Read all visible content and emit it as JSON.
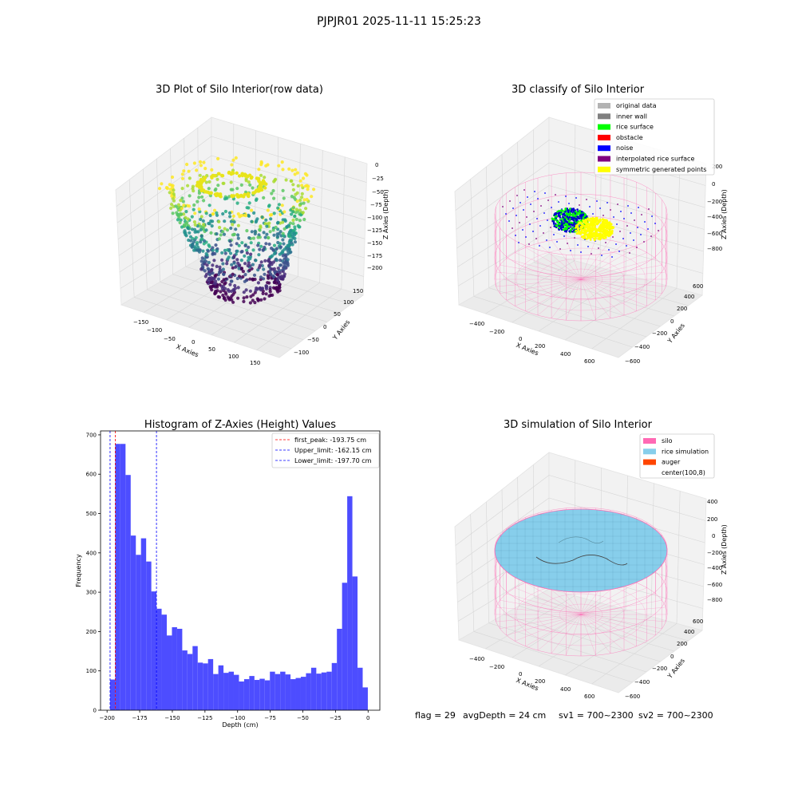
{
  "figure": {
    "suptitle": "PJPJR01 2025-11-11 15:25:23",
    "footer": {
      "flag": "flag = 29",
      "avg_depth": "avgDepth = 24 cm",
      "sv1": "sv1 = 700~2300",
      "sv2": "sv2 = 700~2300"
    }
  },
  "chart_data": [
    {
      "type": "scatter",
      "projection": "3d",
      "title": "3D Plot of Silo Interior(row data)",
      "xlabel": "X Axies",
      "ylabel": "Y Axies",
      "zlabel": "Z Axies (Depth)",
      "x_ticks": [
        "−150",
        "−100",
        "−50",
        "0",
        "50",
        "100",
        "150"
      ],
      "y_ticks": [
        "−100",
        "−50",
        "0",
        "50",
        "100",
        "150"
      ],
      "z_ticks": [
        "0",
        "−25",
        "−50",
        "−75",
        "−100",
        "−125",
        "−150",
        "−175",
        "−200"
      ],
      "xlim": [
        -170,
        170
      ],
      "ylim": [
        -130,
        170
      ],
      "zlim": [
        -205,
        5
      ],
      "colormap": "viridis",
      "point_cloud": "bowl-shaped cloud of points, depth about -200 at the bottom rising to about -20 at the top edge"
    },
    {
      "type": "scatter",
      "projection": "3d",
      "title": "3D classify of Silo Interior",
      "xlabel": "X Axies",
      "ylabel": "Y Axies",
      "zlabel": "Z Axies (Depth)",
      "x_ticks": [
        "−400",
        "−200",
        "0",
        "200",
        "400",
        "600"
      ],
      "y_ticks": [
        "−600",
        "−400",
        "−200",
        "0",
        "200",
        "400",
        "600"
      ],
      "z_ticks": [
        "200",
        "0",
        "−200",
        "−400",
        "−600",
        "−800"
      ],
      "legend": [
        {
          "label": "original data",
          "color": "#b3b3b3"
        },
        {
          "label": "inner wall",
          "color": "#808080"
        },
        {
          "label": "rice surface",
          "color": "#00ff00"
        },
        {
          "label": "obstacle",
          "color": "#ff0000"
        },
        {
          "label": "noise",
          "color": "#0000ff"
        },
        {
          "label": "interpolated rice surface",
          "color": "#800080"
        },
        {
          "label": "symmetric generated points",
          "color": "#ffff00"
        }
      ],
      "legend_position": "upper right",
      "wireframe_color": "#ff69b4"
    },
    {
      "type": "bar",
      "title": "Histogram of Z-Axies (Height) Values",
      "xlabel": "Depth (cm)",
      "ylabel": "Frequency",
      "xlim": [
        -205,
        9
      ],
      "ylim": [
        0,
        710
      ],
      "x_ticks": [
        -200,
        -175,
        -150,
        -125,
        -100,
        -75,
        -50,
        -25,
        0
      ],
      "x_tick_labels": [
        "−200",
        "−175",
        "−150",
        "−125",
        "−100",
        "−75",
        "−50",
        "−25",
        "0"
      ],
      "y_ticks": [
        0,
        100,
        200,
        300,
        400,
        500,
        600,
        700
      ],
      "bar_color": "#4d4dff",
      "bin_start": -197.7,
      "bin_width": 3.95,
      "values": [
        78,
        677,
        677,
        598,
        444,
        395,
        437,
        378,
        302,
        258,
        243,
        190,
        211,
        207,
        152,
        143,
        163,
        121,
        119,
        130,
        92,
        114,
        95,
        98,
        90,
        73,
        79,
        87,
        77,
        80,
        76,
        98,
        92,
        98,
        91,
        79,
        82,
        85,
        94,
        108,
        93,
        96,
        98,
        120,
        207,
        324,
        544,
        340,
        108,
        58
      ],
      "lines": [
        {
          "label": "first_peak: -193.75 cm",
          "x": -193.75,
          "color": "#ff0000"
        },
        {
          "label": "Upper_limit: -162.15 cm",
          "x": -162.15,
          "color": "#0000ff"
        },
        {
          "label": "Lower_limit: -197.70 cm",
          "x": -197.7,
          "color": "#0000ff"
        }
      ],
      "legend_position": "upper right"
    },
    {
      "type": "surface",
      "projection": "3d",
      "title": "3D simulation of Silo Interior",
      "xlabel": "X Axies",
      "ylabel": "Y Axies",
      "zlabel": "Z Axies (Depth)",
      "x_ticks": [
        "−400",
        "−200",
        "0",
        "200",
        "400",
        "600"
      ],
      "y_ticks": [
        "−600",
        "−400",
        "−200",
        "0",
        "200",
        "400",
        "600"
      ],
      "z_ticks": [
        "400",
        "200",
        "0",
        "−200",
        "−400",
        "−600",
        "−800"
      ],
      "legend": [
        {
          "label": "silo",
          "color": "#ff69b4"
        },
        {
          "label": "rice simulation",
          "color": "#87ceeb"
        },
        {
          "label": "auger",
          "color": "#ff4500"
        },
        {
          "label": "center(100,8)",
          "color": "#ffffff"
        }
      ],
      "legend_position": "upper right"
    }
  ]
}
